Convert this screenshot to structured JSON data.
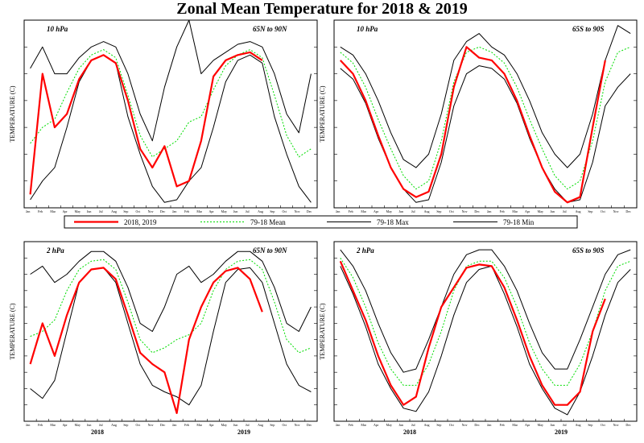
{
  "title": "Zonal Mean Temperature for 2018 & 2019",
  "legend": {
    "entries": [
      {
        "label": "2018, 2019",
        "color": "#ff0000",
        "style": "solid-thick"
      },
      {
        "label": "79-18 Mean",
        "color": "#00dd00",
        "style": "dotted"
      },
      {
        "label": "79-18 Max",
        "color": "#000000",
        "style": "solid"
      },
      {
        "label": "79-18 Min",
        "color": "#000000",
        "style": "solid"
      }
    ]
  },
  "chart_data": [
    {
      "type": "line",
      "level": "10 hPa",
      "region": "65N to 90N",
      "ylabel": "TEMPERATURE (C)",
      "years": [
        "2018",
        "2019"
      ],
      "months": [
        "Jan",
        "Feb",
        "Mar",
        "Apr",
        "May",
        "Jun",
        "Jul",
        "Aug",
        "Sep",
        "Oct",
        "Nov",
        "Dec",
        "Jan",
        "Feb",
        "Mar",
        "Apr",
        "May",
        "Jun",
        "Jul",
        "Aug",
        "Sep",
        "Oct",
        "Nov",
        "Dec"
      ],
      "ylim": [
        -90,
        -20
      ],
      "series": [
        {
          "name": "79-18 Max",
          "values": [
            -38,
            -30,
            -40,
            -40,
            -34,
            -30,
            -28,
            -30,
            -40,
            -55,
            -65,
            -45,
            -30,
            -20,
            -40,
            -35,
            -32,
            -29,
            -28,
            -30,
            -40,
            -55,
            -62,
            -40
          ]
        },
        {
          "name": "79-18 Mean",
          "values": [
            -66,
            -60,
            -57,
            -47,
            -38,
            -33,
            -31,
            -34,
            -48,
            -63,
            -71,
            -68,
            -65,
            -58,
            -56,
            -46,
            -37,
            -33,
            -31,
            -34,
            -48,
            -63,
            -71,
            -68
          ]
        },
        {
          "name": "79-18 Min",
          "values": [
            -87,
            -80,
            -75,
            -60,
            -43,
            -35,
            -33,
            -36,
            -56,
            -70,
            -82,
            -88,
            -87,
            -80,
            -75,
            -60,
            -43,
            -35,
            -33,
            -36,
            -56,
            -70,
            -82,
            -88
          ]
        },
        {
          "name": "2018, 2019",
          "values": [
            -85,
            -40,
            -60,
            -55,
            -42,
            -35,
            -33,
            -36,
            -50,
            -68,
            -75,
            -67,
            -82,
            -80,
            -65,
            -41,
            -35,
            -33,
            -32,
            -35,
            null,
            null,
            null,
            null
          ]
        }
      ]
    },
    {
      "type": "line",
      "level": "10 hPa",
      "region": "65S to 90S",
      "ylabel": "TEMPERATURE (C)",
      "years": [
        "2018",
        "2019"
      ],
      "months": [
        "Jan",
        "Feb",
        "Mar",
        "Apr",
        "May",
        "Jun",
        "Jul",
        "Aug",
        "Sep",
        "Oct",
        "Nov",
        "Dec",
        "Jan",
        "Feb",
        "Mar",
        "Apr",
        "May",
        "Jun",
        "Jul",
        "Aug",
        "Sep",
        "Oct",
        "Nov",
        "Dec"
      ],
      "ylim": [
        -90,
        -20
      ],
      "series": [
        {
          "name": "79-18 Max",
          "values": [
            -30,
            -33,
            -40,
            -50,
            -62,
            -72,
            -75,
            -70,
            -55,
            -35,
            -28,
            -25,
            -30,
            -33,
            -40,
            -50,
            -62,
            -70,
            -75,
            -70,
            -55,
            -35,
            -22,
            -25
          ]
        },
        {
          "name": "79-18 Mean",
          "values": [
            -32,
            -36,
            -45,
            -57,
            -68,
            -78,
            -83,
            -80,
            -65,
            -43,
            -32,
            -30,
            -32,
            -36,
            -45,
            -57,
            -68,
            -78,
            -83,
            -80,
            -65,
            -43,
            -32,
            -30
          ]
        },
        {
          "name": "79-18 Min",
          "values": [
            -38,
            -42,
            -51,
            -64,
            -75,
            -83,
            -88,
            -87,
            -73,
            -52,
            -40,
            -37,
            -38,
            -42,
            -51,
            -64,
            -75,
            -83,
            -88,
            -87,
            -73,
            -52,
            -45,
            -40
          ]
        },
        {
          "name": "2018, 2019",
          "values": [
            -35,
            -40,
            -50,
            -63,
            -75,
            -83,
            -86,
            -84,
            -70,
            -45,
            -30,
            -34,
            -35,
            -40,
            -50,
            -63,
            -75,
            -84,
            -88,
            -86,
            -60,
            -35,
            null,
            null
          ]
        }
      ]
    },
    {
      "type": "line",
      "level": "2 hPa",
      "region": "65N to 90N",
      "ylabel": "TEMPERATURE (C)",
      "years": [
        "2018",
        "2019"
      ],
      "months": [
        "Jan",
        "Feb",
        "Mar",
        "Apr",
        "May",
        "Jun",
        "Jul",
        "Aug",
        "Sep",
        "Oct",
        "Nov",
        "Dec",
        "Jan",
        "Feb",
        "Mar",
        "Apr",
        "May",
        "Jun",
        "Jul",
        "Aug",
        "Sep",
        "Oct",
        "Nov",
        "Dec"
      ],
      "ylim": [
        -90,
        20
      ],
      "series": [
        {
          "name": "79-18 Max",
          "values": [
            0,
            5,
            -5,
            0,
            8,
            14,
            14,
            8,
            -8,
            -30,
            -35,
            -20,
            0,
            5,
            -5,
            0,
            8,
            14,
            14,
            8,
            -8,
            -30,
            -35,
            -20
          ]
        },
        {
          "name": "79-18 Mean",
          "values": [
            -38,
            -35,
            -28,
            -10,
            3,
            8,
            9,
            3,
            -17,
            -40,
            -48,
            -45,
            -40,
            -37,
            -30,
            -10,
            3,
            8,
            9,
            3,
            -17,
            -40,
            -48,
            -45
          ]
        },
        {
          "name": "79-18 Min",
          "values": [
            -70,
            -76,
            -65,
            -35,
            -5,
            3,
            4,
            -5,
            -30,
            -55,
            -68,
            -72,
            -75,
            -80,
            -68,
            -35,
            -5,
            3,
            4,
            -5,
            -30,
            -55,
            -68,
            -72
          ]
        },
        {
          "name": "2018, 2019",
          "values": [
            -55,
            -30,
            -50,
            -25,
            -5,
            3,
            4,
            -3,
            -25,
            -48,
            -55,
            -60,
            -85,
            -40,
            -20,
            -5,
            2,
            4,
            -3,
            -23,
            null,
            null,
            null,
            null
          ]
        }
      ]
    },
    {
      "type": "line",
      "level": "2 hPa",
      "region": "65S to 90S",
      "ylabel": "TEMPERATURE (C)",
      "years": [
        "2018",
        "2019"
      ],
      "months": [
        "Jan",
        "Feb",
        "Mar",
        "Apr",
        "May",
        "Jun",
        "Jul",
        "Aug",
        "Sep",
        "Oct",
        "Nov",
        "Dec",
        "Jan",
        "Feb",
        "Mar",
        "Apr",
        "May",
        "Jun",
        "Jul",
        "Aug",
        "Sep",
        "Oct",
        "Nov",
        "Dec"
      ],
      "ylim": [
        -90,
        20
      ],
      "series": [
        {
          "name": "79-18 Max",
          "values": [
            15,
            5,
            -10,
            -30,
            -48,
            -60,
            -58,
            -40,
            -20,
            0,
            12,
            15,
            15,
            5,
            -10,
            -30,
            -48,
            -58,
            -58,
            -40,
            -20,
            0,
            12,
            15
          ]
        },
        {
          "name": "79-18 Mean",
          "values": [
            10,
            -2,
            -20,
            -42,
            -58,
            -68,
            -68,
            -55,
            -35,
            -10,
            5,
            8,
            8,
            -2,
            -20,
            -42,
            -58,
            -68,
            -68,
            -55,
            -35,
            -10,
            5,
            8
          ]
        },
        {
          "name": "79-18 Min",
          "values": [
            5,
            -12,
            -32,
            -55,
            -70,
            -82,
            -84,
            -72,
            -50,
            -25,
            -5,
            3,
            5,
            -12,
            -32,
            -55,
            -70,
            -82,
            -86,
            -72,
            -50,
            -25,
            -5,
            3
          ]
        },
        {
          "name": "2018, 2019",
          "values": [
            8,
            -10,
            -28,
            -50,
            -68,
            -80,
            -75,
            -45,
            -20,
            -8,
            4,
            6,
            5,
            -8,
            -28,
            -50,
            -68,
            -80,
            -80,
            -72,
            -35,
            -15,
            null,
            null
          ]
        }
      ]
    }
  ]
}
